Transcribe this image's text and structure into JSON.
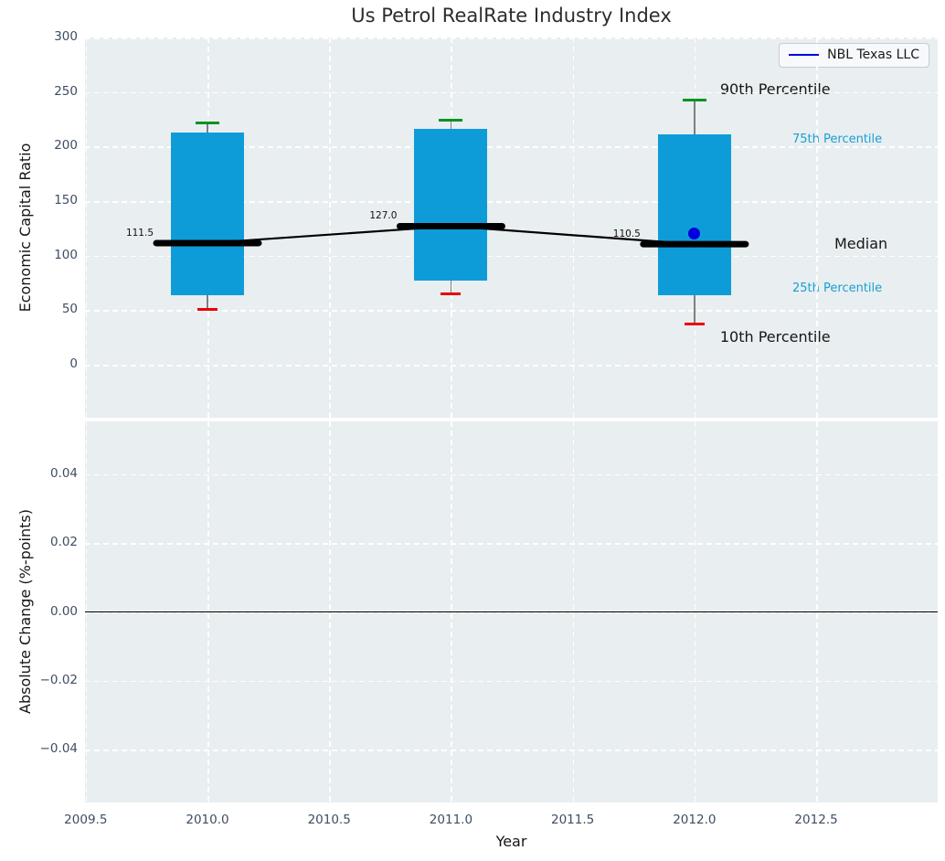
{
  "title": "Us Petrol RealRate Industry Index",
  "colors": {
    "box_fill": "#0e9cd8",
    "whisker_cap_high": "#0a9123",
    "whisker_cap_low": "#e8000b",
    "median_line": "#000000",
    "company_series": "#0000dd",
    "percentile_text_blue": "#189fd4",
    "axes_background": "#e9eef0",
    "grid": "#ffffff",
    "tick_text": "#3e4d63"
  },
  "chart_data": [
    {
      "type": "box",
      "title": "Us Petrol RealRate Industry Index",
      "xlabel": "Year",
      "ylabel": "Economic Capital Ratio",
      "grid": "white dashed",
      "legend_position": "upper right",
      "legend_label": "NBL Texas LLC",
      "xlim": [
        2009.497,
        2012.999
      ],
      "ylim": [
        -48.6,
        300
      ],
      "yticks": [
        {
          "v": 300,
          "label": "300"
        },
        {
          "v": 250,
          "label": "250"
        },
        {
          "v": 200,
          "label": "200"
        },
        {
          "v": 150,
          "label": "150"
        },
        {
          "v": 100,
          "label": "100"
        },
        {
          "v": 50,
          "label": "50"
        },
        {
          "v": 0,
          "label": "0"
        }
      ],
      "boxes": [
        {
          "year": 2010,
          "p10": 51,
          "p25": 64,
          "median": 111.5,
          "p75": 213,
          "p90": 222,
          "median_label": "111.5"
        },
        {
          "year": 2011,
          "p10": 65,
          "p25": 77,
          "median": 127.0,
          "p75": 216,
          "p90": 224,
          "median_label": "127.0"
        },
        {
          "year": 2012,
          "p10": 37,
          "p25": 64,
          "median": 110.5,
          "p75": 211,
          "p90": 243,
          "median_label": "110.5"
        }
      ],
      "company_point": {
        "name": "NBL Texas LLC",
        "year": 2012,
        "value": 120
      },
      "percentile_labels": {
        "p90": "90th Percentile",
        "p75": "75th Percentile",
        "median": "Median",
        "p25": "25th Percentile",
        "p10": "10th Percentile"
      }
    },
    {
      "type": "line",
      "xlabel": "Year",
      "ylabel": "Absolute Change (%-points)",
      "grid": "white dashed",
      "xlim": [
        2009.497,
        2012.999
      ],
      "ylim": [
        -0.0554,
        0.0554
      ],
      "zero_line": 0.0,
      "series": [],
      "yticks": [
        {
          "v": 0.04,
          "label": "0.04"
        },
        {
          "v": 0.02,
          "label": "0.02"
        },
        {
          "v": 0.0,
          "label": "0.00"
        },
        {
          "v": -0.02,
          "label": "−0.02"
        },
        {
          "v": -0.04,
          "label": "−0.04"
        }
      ],
      "xticks": [
        {
          "v": 2009.5,
          "label": "2009.5"
        },
        {
          "v": 2010.0,
          "label": "2010.0"
        },
        {
          "v": 2010.5,
          "label": "2010.5"
        },
        {
          "v": 2011.0,
          "label": "2011.0"
        },
        {
          "v": 2011.5,
          "label": "2011.5"
        },
        {
          "v": 2012.0,
          "label": "2012.0"
        },
        {
          "v": 2012.5,
          "label": "2012.5"
        }
      ]
    }
  ]
}
